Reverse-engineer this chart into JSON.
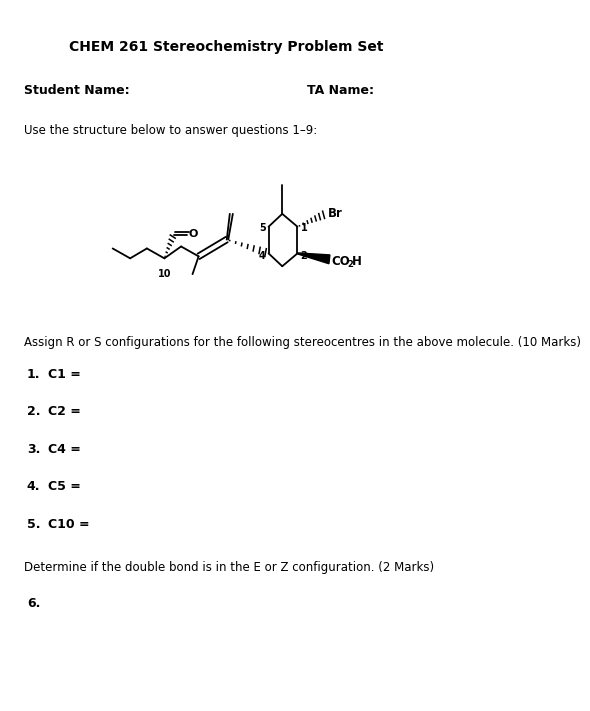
{
  "title": "CHEM 261 Stereochemistry Problem Set",
  "student_label": "Student Name:",
  "ta_label": "TA Name:",
  "instruction": "Use the structure below to answer questions 1–9:",
  "assign_instruction": "Assign R or S configurations for the following stereocentres in the above molecule. (10 Marks)",
  "questions_rs": [
    {
      "num": "1.",
      "label": "C1 ="
    },
    {
      "num": "2.",
      "label": "C2 ="
    },
    {
      "num": "3.",
      "label": "C4 ="
    },
    {
      "num": "4.",
      "label": "C5 ="
    },
    {
      "num": "5.",
      "label": "C10 ="
    }
  ],
  "double_bond_instruction": "Determine if the double bond is in the E or Z configuration. (2 Marks)",
  "question6_num": "6.",
  "background_color": "#ffffff",
  "text_color": "#000000",
  "title_fontsize": 10,
  "label_fontsize": 9,
  "body_fontsize": 8.5,
  "num_fontsize": 7
}
